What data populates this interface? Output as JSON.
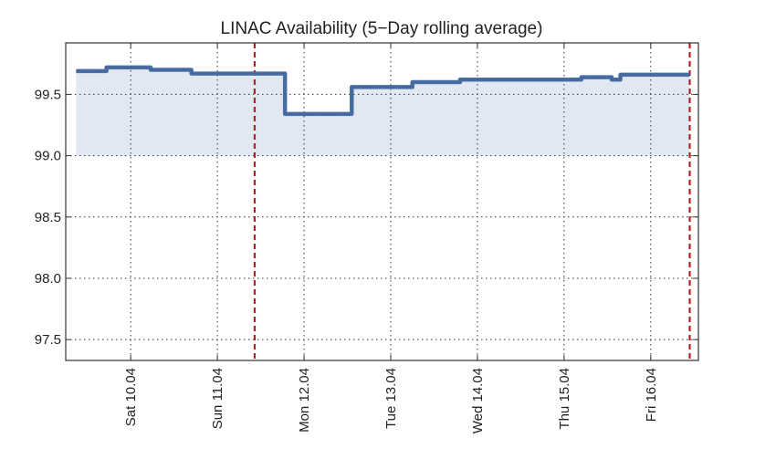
{
  "chart_data": {
    "type": "area",
    "title": "LINAC Availability (5−Day rolling average)",
    "xlabel": "",
    "ylabel": "",
    "xlim": [
      0.25,
      7.55
    ],
    "ylim": [
      97.33,
      99.92
    ],
    "baseline": 99.0,
    "grid": true,
    "legend": "none",
    "colors": {
      "line": "#4a6fa5",
      "fill": "#e1e8f1",
      "marker_line": "#b22222",
      "grid": "#333333",
      "axis": "#333333"
    },
    "x_ticks": [
      {
        "pos": 1,
        "label": "Sat 10.04"
      },
      {
        "pos": 2,
        "label": "Sun 11.04"
      },
      {
        "pos": 3,
        "label": "Mon 12.04"
      },
      {
        "pos": 4,
        "label": "Tue 13.04"
      },
      {
        "pos": 5,
        "label": "Wed 14.04"
      },
      {
        "pos": 6,
        "label": "Thu 15.04"
      },
      {
        "pos": 7,
        "label": "Fri 16.04"
      }
    ],
    "y_ticks": [
      {
        "value": 97.5,
        "label": "97.5"
      },
      {
        "value": 98.0,
        "label": "98.0"
      },
      {
        "value": 98.5,
        "label": "98.5"
      },
      {
        "value": 99.0,
        "label": "99.0"
      },
      {
        "value": 99.5,
        "label": "99.5"
      }
    ],
    "vertical_markers": [
      2.43,
      7.45
    ],
    "series": [
      {
        "points": [
          [
            0.37,
            99.69
          ],
          [
            0.72,
            99.69
          ],
          [
            0.72,
            99.72
          ],
          [
            1.23,
            99.72
          ],
          [
            1.23,
            99.7
          ],
          [
            1.7,
            99.7
          ],
          [
            1.7,
            99.67
          ],
          [
            2.78,
            99.67
          ],
          [
            2.78,
            99.34
          ],
          [
            3.55,
            99.34
          ],
          [
            3.55,
            99.56
          ],
          [
            3.95,
            99.56
          ],
          [
            4.25,
            99.56
          ],
          [
            4.25,
            99.6
          ],
          [
            4.8,
            99.6
          ],
          [
            4.8,
            99.62
          ],
          [
            5.8,
            99.62
          ],
          [
            6.2,
            99.62
          ],
          [
            6.2,
            99.64
          ],
          [
            6.55,
            99.64
          ],
          [
            6.55,
            99.62
          ],
          [
            6.65,
            99.62
          ],
          [
            6.65,
            99.66
          ],
          [
            7.45,
            99.66
          ]
        ]
      }
    ]
  }
}
